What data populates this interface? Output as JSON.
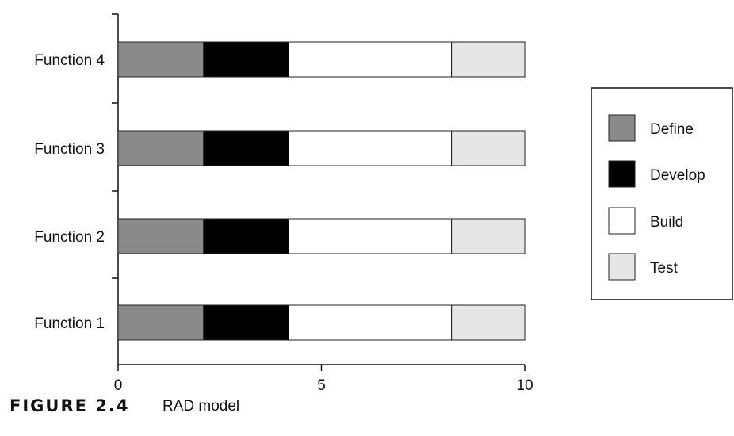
{
  "chart_data": {
    "type": "bar",
    "orientation": "horizontal",
    "stacked": true,
    "categories": [
      "Function 4",
      "Function 3",
      "Function 2",
      "Function 1"
    ],
    "series": [
      {
        "name": "Define",
        "values": [
          2.1,
          2.1,
          2.1,
          2.1
        ],
        "color": "#8a8a8a"
      },
      {
        "name": "Develop",
        "values": [
          2.1,
          2.1,
          2.1,
          2.1
        ],
        "color": "#000000"
      },
      {
        "name": "Build",
        "values": [
          4.0,
          4.0,
          4.0,
          4.0
        ],
        "color": "#ffffff"
      },
      {
        "name": "Test",
        "values": [
          1.8,
          1.8,
          1.8,
          1.8
        ],
        "color": "#e6e6e6"
      }
    ],
    "xlim": [
      0,
      10
    ],
    "xticks": [
      "0",
      "5",
      "10"
    ],
    "grid": false,
    "legend_position": "right"
  },
  "caption": {
    "figure_label": "FIGURE 2.4",
    "text": "RAD model"
  }
}
